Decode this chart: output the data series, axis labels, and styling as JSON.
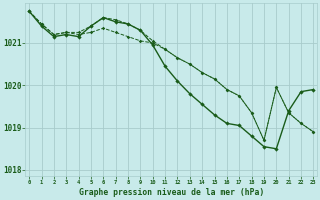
{
  "background_color": "#c8eaea",
  "grid_color": "#a8cccc",
  "line_color": "#1a5c1a",
  "xlabel": "Graphe pression niveau de la mer (hPa)",
  "x_ticks": [
    0,
    1,
    2,
    3,
    4,
    5,
    6,
    7,
    8,
    9,
    10,
    11,
    12,
    13,
    14,
    15,
    16,
    17,
    18,
    19,
    20,
    21,
    22,
    23
  ],
  "ylim": [
    1017.85,
    1021.95
  ],
  "yticks": [
    1018,
    1019,
    1020,
    1021
  ],
  "line1": [
    1021.75,
    1021.45,
    1021.2,
    1021.25,
    1021.25,
    1021.4,
    1021.6,
    1021.55,
    1021.45,
    1021.3,
    1021.05,
    1020.85,
    1020.65,
    1020.5,
    1020.3,
    1020.15,
    1019.9,
    1019.75,
    1019.35,
    1018.7,
    1019.95,
    1019.35,
    1019.1,
    1018.9
  ],
  "line2": [
    1021.75,
    1021.45,
    1021.2,
    1021.25,
    1021.2,
    1021.25,
    1021.35,
    1021.25,
    1021.15,
    1021.05,
    1021.0,
    1020.85,
    1020.65,
    1020.5,
    1020.3,
    1020.15,
    1019.9,
    1019.75,
    1019.35,
    1018.7,
    1019.95,
    1019.35,
    1019.1,
    1018.9
  ],
  "line3": [
    1021.75,
    1021.4,
    1021.15,
    1021.2,
    1021.15,
    1021.4,
    1021.6,
    1021.5,
    1021.45,
    1021.3,
    1020.95,
    1020.45,
    1020.1,
    1019.8,
    1019.55,
    1019.3,
    1019.1,
    1019.05,
    1018.8,
    1018.55,
    1018.5,
    1019.4,
    1019.85,
    1019.9
  ]
}
